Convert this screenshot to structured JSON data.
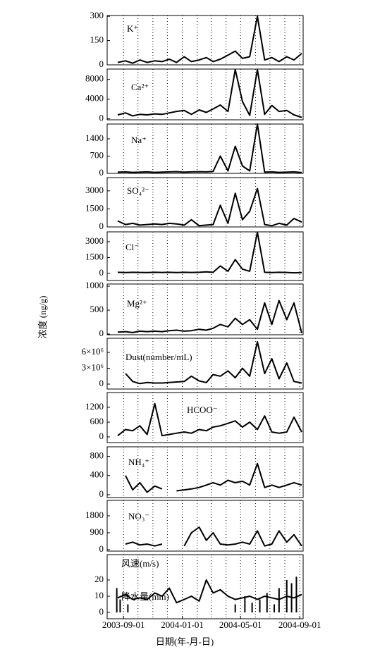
{
  "chart_data": {
    "type": "line",
    "ylabel": "浓度 (ng/g)",
    "xlabel": "日期(年-月-日)",
    "xlim": [
      "2003-07-29",
      "2004-09-08"
    ],
    "xticks": [
      "2003-09-01",
      "2004-01-01",
      "2004-05-01",
      "2004-09-01"
    ],
    "xgrid": [
      "2003-09-01",
      "2003-10-01",
      "2003-11-01",
      "2003-12-01",
      "2004-01-01",
      "2004-02-01",
      "2004-03-01",
      "2004-04-01",
      "2004-05-01",
      "2004-06-01",
      "2004-07-01",
      "2004-08-01",
      "2004-09-01"
    ],
    "x": [
      "2003-08-20",
      "2003-09-05",
      "2003-09-20",
      "2003-10-05",
      "2003-10-20",
      "2003-11-05",
      "2003-11-20",
      "2003-12-05",
      "2003-12-20",
      "2004-01-05",
      "2004-01-20",
      "2004-02-05",
      "2004-02-20",
      "2004-03-05",
      "2004-03-20",
      "2004-04-05",
      "2004-04-20",
      "2004-05-05",
      "2004-05-20",
      "2004-06-05",
      "2004-06-20",
      "2004-07-05",
      "2004-07-20",
      "2004-08-05",
      "2004-08-20",
      "2004-09-05"
    ],
    "panels": [
      {
        "ylim": [
          0,
          305
        ],
        "yticks": [
          0,
          150,
          300
        ],
        "series": [
          {
            "name": "K⁺",
            "color": "#000",
            "values": [
              15,
              25,
              10,
              30,
              15,
              25,
              20,
              35,
              15,
              50,
              20,
              30,
              45,
              20,
              35,
              60,
              85,
              40,
              50,
              300,
              30,
              45,
              20,
              50,
              30,
              70
            ]
          }
        ]
      },
      {
        "ylim": [
          -200,
          10100
        ],
        "yticks": [
          0,
          4000,
          8000
        ],
        "series": [
          {
            "name": "Ca²⁺",
            "color": "#000",
            "values": [
              800,
              1200,
              600,
              900,
              800,
              1000,
              900,
              1200,
              1500,
              1700,
              900,
              1800,
              1300,
              2000,
              2800,
              1500,
              10000,
              3500,
              700,
              10000,
              900,
              2700,
              1500,
              1700,
              800,
              300
            ]
          }
        ]
      },
      {
        "ylim": [
          0,
          2000
        ],
        "yticks": [
          0,
          700,
          1400
        ],
        "series": [
          {
            "name": "Na⁺",
            "color": "#000",
            "values": [
              50,
              60,
              40,
              50,
              60,
              40,
              50,
              60,
              70,
              50,
              60,
              70,
              60,
              80,
              700,
              100,
              1100,
              300,
              100,
              2000,
              50,
              60,
              40,
              50,
              60,
              30
            ]
          }
        ]
      },
      {
        "ylim": [
          0,
          4100
        ],
        "yticks": [
          0,
          1500,
          3000
        ],
        "series": [
          {
            "name": "SO₄²⁻",
            "color": "#000",
            "values": [
              500,
              200,
              300,
              150,
              200,
              250,
              200,
              300,
              250,
              150,
              600,
              100,
              150,
              200,
              1800,
              300,
              2800,
              600,
              1300,
              3200,
              200,
              100,
              300,
              150,
              700,
              400
            ]
          }
        ]
      },
      {
        "ylim": [
          -670,
          3930
        ],
        "yticks": [
          0,
          1500,
          3000
        ],
        "series": [
          {
            "name": "Cl⁻",
            "color": "#000",
            "values": [
              100,
              80,
              100,
              90,
              80,
              100,
              90,
              100,
              80,
              100,
              90,
              100,
              150,
              100,
              700,
              200,
              1300,
              400,
              200,
              3900,
              100,
              80,
              100,
              90,
              60,
              80
            ]
          }
        ]
      },
      {
        "ylim": [
          -15,
          1045
        ],
        "yticks": [
          0,
          500,
          1000
        ],
        "series": [
          {
            "name": "Mg²⁺",
            "color": "#000",
            "values": [
              40,
              50,
              30,
              60,
              50,
              60,
              50,
              70,
              80,
              60,
              70,
              100,
              80,
              120,
              200,
              150,
              330,
              200,
              300,
              100,
              650,
              200,
              700,
              300,
              650,
              20
            ]
          }
        ]
      },
      {
        "ylim": [
          -930000,
          8670000
        ],
        "yticks": [
          0,
          {
            "value": 3000000,
            "label": "3×10⁶"
          },
          {
            "value": 6000000,
            "label": "6×10⁶"
          }
        ],
        "series": [
          {
            "name": "Dust(number/mL)",
            "color": "#000",
            "values": [
              null,
              2000000,
              500000,
              100000,
              300000,
              200000,
              200000,
              300000,
              400000,
              500000,
              1500000,
              600000,
              300000,
              1800000,
              1500000,
              2500000,
              1200000,
              3000000,
              1500000,
              8000000,
              2000000,
              4800000,
              1000000,
              4000000,
              500000,
              200000
            ]
          }
        ]
      },
      {
        "ylim": [
          -230,
          1800
        ],
        "yticks": [
          0,
          600,
          1200
        ],
        "series": [
          {
            "name": "HCOO⁻",
            "color": "#000",
            "values": [
              50,
              300,
              250,
              450,
              100,
              1350,
              50,
              100,
              150,
              200,
              150,
              300,
              250,
              400,
              450,
              550,
              650,
              400,
              600,
              300,
              850,
              200,
              150,
              200,
              800,
              200
            ]
          }
        ]
      },
      {
        "ylim": [
          -60,
          1000
        ],
        "yticks": [
          0,
          400,
          800
        ],
        "series": [
          {
            "name": "NH₄⁺",
            "color": "#000",
            "values": [
              null,
              400,
              100,
              250,
              50,
              180,
              120,
              null,
              80,
              100,
              120,
              150,
              200,
              250,
              200,
              300,
              250,
              280,
              200,
              650,
              150,
              200,
              150,
              200,
              250,
              200
            ]
          }
        ]
      },
      {
        "ylim": [
          -75,
          2625
        ],
        "yticks": [
          0,
          900,
          1800
        ],
        "series": [
          {
            "name": "NO₃⁻",
            "color": "#000",
            "values": [
              null,
              300,
              400,
              250,
              300,
              200,
              300,
              null,
              null,
              200,
              900,
              1200,
              500,
              900,
              300,
              250,
              300,
              400,
              300,
              1000,
              200,
              300,
              1000,
              400,
              800,
              200
            ]
          }
        ]
      },
      {
        "ylim": [
          -3.9,
          35.6
        ],
        "yticks": [
          0,
          10,
          20
        ],
        "series": [
          {
            "name": "风速(m/s)",
            "color": "#000",
            "values": [
              9,
              11,
              8,
              9,
              8,
              12,
              10,
              15,
              6,
              8,
              10,
              7,
              20,
              12,
              14,
              10,
              8,
              9,
              10,
              8,
              10,
              9,
              8,
              10,
              9,
              11
            ]
          },
          {
            "name": "降水量(mm)",
            "type": "bar",
            "color": "#000",
            "x": [
              "2003-08-18",
              "2003-08-25",
              "2003-09-10",
              "2004-04-20",
              "2004-05-10",
              "2004-05-25",
              "2004-06-10",
              "2004-06-25",
              "2004-07-10",
              "2004-07-20",
              "2004-08-05",
              "2004-08-15",
              "2004-08-25"
            ],
            "values": [
              15,
              8,
              5,
              5,
              10,
              6,
              8,
              12,
              5,
              15,
              20,
              18,
              22
            ]
          }
        ]
      }
    ]
  }
}
